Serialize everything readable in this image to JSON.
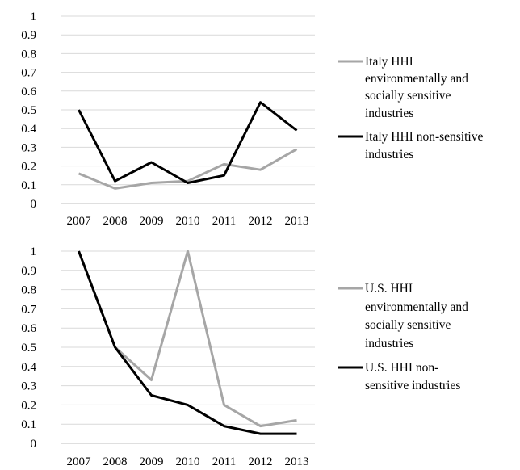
{
  "chart_data": [
    {
      "type": "line",
      "categories": [
        "2007",
        "2008",
        "2009",
        "2010",
        "2011",
        "2012",
        "2013"
      ],
      "ylim": [
        0,
        1
      ],
      "yticks": [
        "0",
        "0.1",
        "0.2",
        "0.3",
        "0.4",
        "0.5",
        "0.6",
        "0.7",
        "0.8",
        "0.9",
        "1"
      ],
      "grid": true,
      "legend_position": "right",
      "series": [
        {
          "name_lines": [
            "Italy HHI",
            "environmentally and",
            "socially sensitive",
            "industries"
          ],
          "color": "#a6a6a6",
          "values": [
            0.16,
            0.08,
            0.11,
            0.12,
            0.21,
            0.18,
            0.29
          ]
        },
        {
          "name_lines": [
            "Italy HHI non-sensitive",
            "industries"
          ],
          "color": "#000000",
          "values": [
            0.5,
            0.12,
            0.22,
            0.11,
            0.15,
            0.54,
            0.39
          ]
        }
      ]
    },
    {
      "type": "line",
      "categories": [
        "2007",
        "2008",
        "2009",
        "2010",
        "2011",
        "2012",
        "2013"
      ],
      "ylim": [
        0,
        1
      ],
      "yticks": [
        "0",
        "0.1",
        "0.2",
        "0.3",
        "0.4",
        "0.5",
        "0.6",
        "0.7",
        "0.8",
        "0.9",
        "1"
      ],
      "grid": true,
      "legend_position": "right",
      "series": [
        {
          "name_lines": [
            "U.S. HHI",
            "environmentally and",
            "socially sensitive",
            "industries"
          ],
          "color": "#a6a6a6",
          "values": [
            1.0,
            0.5,
            0.33,
            1.0,
            0.2,
            0.09,
            0.12
          ]
        },
        {
          "name_lines": [
            "U.S. HHI non-",
            "sensitive industries"
          ],
          "color": "#000000",
          "values": [
            1.0,
            0.5,
            0.25,
            0.2,
            0.09,
            0.05,
            0.05
          ]
        }
      ]
    }
  ]
}
